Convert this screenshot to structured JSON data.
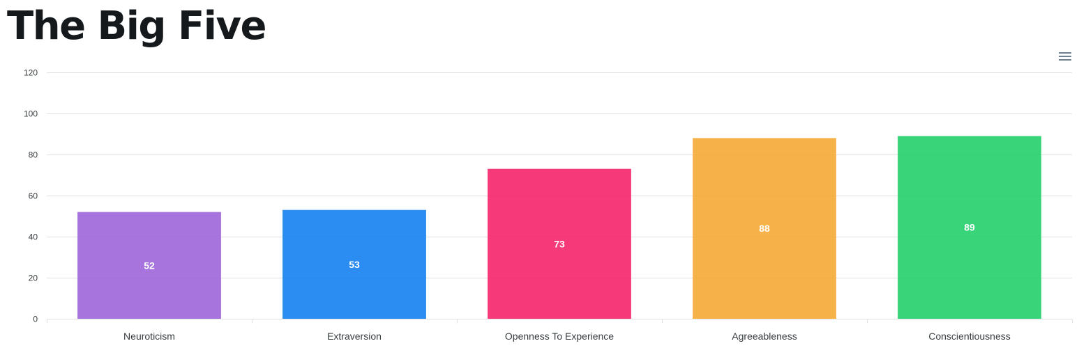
{
  "page": {
    "title": "The Big Five"
  },
  "toolbar": {
    "menu_icon": "hamburger-menu-icon"
  },
  "chart_data": {
    "type": "bar",
    "title": "The Big Five",
    "xlabel": "",
    "ylabel": "",
    "categories": [
      "Neuroticism",
      "Extraversion",
      "Openness To Experience",
      "Agreeableness",
      "Conscientiousness"
    ],
    "values": [
      52,
      53,
      73,
      88,
      89
    ],
    "data_labels": [
      "52",
      "53",
      "73",
      "88",
      "89"
    ],
    "colors": [
      "#9d64d9",
      "#1480ef",
      "#f5256a",
      "#f5aa35",
      "#24ce6b"
    ],
    "ylim": [
      0,
      120
    ],
    "yticks": [
      0,
      20,
      40,
      60,
      80,
      100,
      120
    ],
    "ytick_labels": [
      "0",
      "20",
      "40",
      "60",
      "80",
      "100",
      "120"
    ],
    "grid": true,
    "legend": "none"
  }
}
